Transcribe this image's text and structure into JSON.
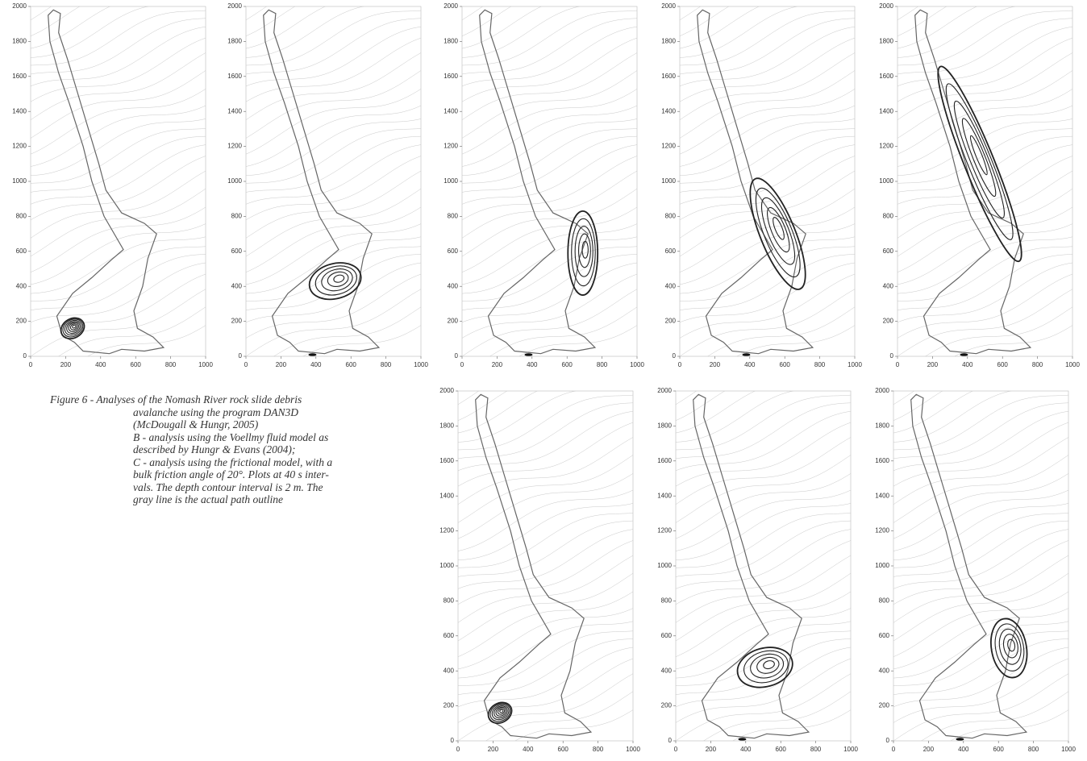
{
  "chart_data": [
    {
      "type": "contour",
      "xlim": [
        0,
        1000
      ],
      "ylim": [
        0,
        2000
      ],
      "xticks": [
        0,
        200,
        400,
        600,
        800,
        1000
      ],
      "yticks": [
        0,
        200,
        400,
        600,
        800,
        1000,
        1200,
        1400,
        1600,
        1800,
        2000
      ]
    },
    {
      "type": "contour",
      "xlim": [
        0,
        1000
      ],
      "ylim": [
        0,
        2000
      ],
      "xticks": [
        0,
        200,
        400,
        600,
        800,
        1000
      ],
      "yticks": [
        0,
        200,
        400,
        600,
        800,
        1000,
        1200,
        1400,
        1600,
        1800,
        2000
      ]
    },
    {
      "type": "contour",
      "xlim": [
        0,
        1000
      ],
      "ylim": [
        0,
        2000
      ],
      "xticks": [
        0,
        200,
        400,
        600,
        800,
        1000
      ],
      "yticks": [
        0,
        200,
        400,
        600,
        800,
        1000,
        1200,
        1400,
        1600,
        1800,
        2000
      ]
    },
    {
      "type": "contour",
      "xlim": [
        0,
        1000
      ],
      "ylim": [
        0,
        2000
      ],
      "xticks": [
        0,
        200,
        400,
        600,
        800,
        1000
      ],
      "yticks": [
        0,
        200,
        400,
        600,
        800,
        1000,
        1200,
        1400,
        1600,
        1800,
        2000
      ]
    },
    {
      "type": "contour",
      "xlim": [
        0,
        1000
      ],
      "ylim": [
        0,
        2000
      ],
      "xticks": [
        0,
        200,
        400,
        600,
        800,
        1000
      ],
      "yticks": [
        0,
        200,
        400,
        600,
        800,
        1000,
        1200,
        1400,
        1600,
        1800,
        2000
      ]
    },
    {
      "type": "contour",
      "xlim": [
        0,
        1000
      ],
      "ylim": [
        0,
        2000
      ],
      "xticks": [
        0,
        200,
        400,
        600,
        800,
        1000
      ],
      "yticks": [
        0,
        200,
        400,
        600,
        800,
        1000,
        1200,
        1400,
        1600,
        1800,
        2000
      ]
    },
    {
      "type": "contour",
      "xlim": [
        0,
        1000
      ],
      "ylim": [
        0,
        2000
      ],
      "xticks": [
        0,
        200,
        400,
        600,
        800,
        1000
      ],
      "yticks": [
        0,
        200,
        400,
        600,
        800,
        1000,
        1200,
        1400,
        1600,
        1800,
        2000
      ]
    },
    {
      "type": "contour",
      "xlim": [
        0,
        1000
      ],
      "ylim": [
        0,
        2000
      ],
      "xticks": [
        0,
        200,
        400,
        600,
        800,
        1000
      ],
      "yticks": [
        0,
        200,
        400,
        600,
        800,
        1000,
        1200,
        1400,
        1600,
        1800,
        2000
      ]
    }
  ],
  "caption": {
    "lines": [
      "Figure 6 - Analyses of the Nomash River rock slide debris",
      "avalanche using the program DAN3D",
      "(McDougall & Hungr, 2005)",
      "B - analysis using the Voellmy fluid model as",
      "described by Hungr & Evans (2004);",
      "C - analysis using the frictional model, with a",
      "bulk friction angle of 20°. Plots at 40 s inter-",
      "vals. The depth contour interval is 2 m. The",
      "gray line is the actual path outline"
    ]
  }
}
